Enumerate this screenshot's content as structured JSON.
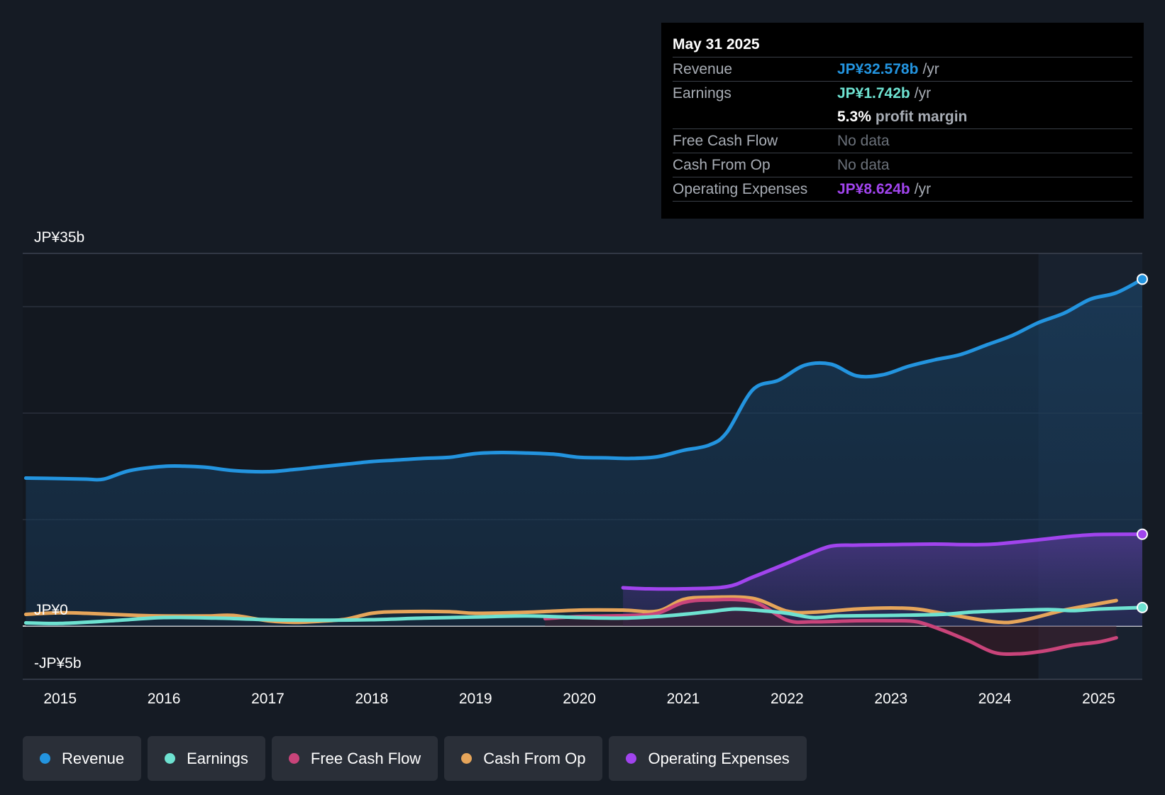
{
  "tooltip": {
    "date": "May 31 2025",
    "rows": {
      "revenue": {
        "label": "Revenue",
        "value": "JP¥32.578b",
        "unit": "/yr",
        "color": "#2394df"
      },
      "earnings": {
        "label": "Earnings",
        "value": "JP¥1.742b",
        "unit": "/yr",
        "color": "#6ee2d1"
      },
      "margin": {
        "value": "5.3%",
        "unit": "profit margin"
      },
      "fcf": {
        "label": "Free Cash Flow",
        "value": "No data"
      },
      "cfo": {
        "label": "Cash From Op",
        "value": "No data"
      },
      "opex": {
        "label": "Operating Expenses",
        "value": "JP¥8.624b",
        "unit": "/yr",
        "color": "#a144ee"
      }
    }
  },
  "legend": [
    {
      "label": "Revenue",
      "color": "#2394df"
    },
    {
      "label": "Earnings",
      "color": "#6ee2d1"
    },
    {
      "label": "Free Cash Flow",
      "color": "#c9447a"
    },
    {
      "label": "Cash From Op",
      "color": "#e6a55a"
    },
    {
      "label": "Operating Expenses",
      "color": "#a144ee"
    }
  ],
  "chart_data": {
    "type": "line",
    "ylim": [
      -5,
      35
    ],
    "xlim": [
      2014.64,
      2025.42
    ],
    "y_axis_labels": [
      {
        "value": 35,
        "label": "JP¥35b"
      },
      {
        "value": 0,
        "label": "JP¥0"
      },
      {
        "value": -5,
        "label": "-JP¥5b"
      }
    ],
    "x_ticks": [
      2015,
      2016,
      2017,
      2018,
      2019,
      2020,
      2021,
      2022,
      2023,
      2024,
      2025
    ],
    "x_tick_labels": [
      "2015",
      "2016",
      "2017",
      "2018",
      "2019",
      "2020",
      "2021",
      "2022",
      "2023",
      "2024",
      "2025"
    ],
    "series": [
      {
        "name": "Revenue",
        "color": "#2394df",
        "fill": true,
        "points": [
          [
            2014.67,
            13.9
          ],
          [
            2015.0,
            13.85
          ],
          [
            2015.25,
            13.8
          ],
          [
            2015.42,
            13.8
          ],
          [
            2015.67,
            14.6
          ],
          [
            2016.0,
            15.0
          ],
          [
            2016.25,
            15.0
          ],
          [
            2016.42,
            14.9
          ],
          [
            2016.67,
            14.6
          ],
          [
            2017.0,
            14.5
          ],
          [
            2017.25,
            14.7
          ],
          [
            2017.5,
            14.95
          ],
          [
            2017.75,
            15.2
          ],
          [
            2018.0,
            15.45
          ],
          [
            2018.25,
            15.6
          ],
          [
            2018.5,
            15.75
          ],
          [
            2018.75,
            15.85
          ],
          [
            2019.0,
            16.2
          ],
          [
            2019.25,
            16.3
          ],
          [
            2019.5,
            16.25
          ],
          [
            2019.75,
            16.15
          ],
          [
            2020.0,
            15.85
          ],
          [
            2020.25,
            15.8
          ],
          [
            2020.5,
            15.75
          ],
          [
            2020.75,
            15.9
          ],
          [
            2021.0,
            16.5
          ],
          [
            2021.25,
            17.0
          ],
          [
            2021.42,
            18.2
          ],
          [
            2021.67,
            22.2
          ],
          [
            2021.92,
            23.1
          ],
          [
            2022.17,
            24.5
          ],
          [
            2022.42,
            24.6
          ],
          [
            2022.67,
            23.5
          ],
          [
            2022.92,
            23.6
          ],
          [
            2023.17,
            24.4
          ],
          [
            2023.42,
            25.0
          ],
          [
            2023.67,
            25.5
          ],
          [
            2023.92,
            26.4
          ],
          [
            2024.17,
            27.3
          ],
          [
            2024.42,
            28.5
          ],
          [
            2024.67,
            29.4
          ],
          [
            2024.92,
            30.7
          ],
          [
            2025.17,
            31.3
          ],
          [
            2025.42,
            32.578
          ]
        ]
      },
      {
        "name": "Operating Expenses",
        "color": "#a144ee",
        "fill": true,
        "points": [
          [
            2020.42,
            3.6
          ],
          [
            2020.67,
            3.5
          ],
          [
            2021.0,
            3.5
          ],
          [
            2021.42,
            3.7
          ],
          [
            2021.67,
            4.6
          ],
          [
            2022.0,
            5.9
          ],
          [
            2022.17,
            6.6
          ],
          [
            2022.42,
            7.5
          ],
          [
            2022.67,
            7.6
          ],
          [
            2023.0,
            7.65
          ],
          [
            2023.42,
            7.7
          ],
          [
            2023.75,
            7.65
          ],
          [
            2024.0,
            7.7
          ],
          [
            2024.42,
            8.1
          ],
          [
            2024.75,
            8.45
          ],
          [
            2025.0,
            8.6
          ],
          [
            2025.42,
            8.624
          ]
        ]
      },
      {
        "name": "Cash From Op",
        "color": "#e6a55a",
        "fill": false,
        "points": [
          [
            2014.67,
            1.1
          ],
          [
            2015.0,
            1.25
          ],
          [
            2015.25,
            1.2
          ],
          [
            2015.5,
            1.1
          ],
          [
            2015.75,
            1.0
          ],
          [
            2016.0,
            0.95
          ],
          [
            2016.42,
            0.95
          ],
          [
            2016.67,
            1.0
          ],
          [
            2017.0,
            0.5
          ],
          [
            2017.25,
            0.35
          ],
          [
            2017.5,
            0.45
          ],
          [
            2017.75,
            0.65
          ],
          [
            2018.0,
            1.2
          ],
          [
            2018.25,
            1.35
          ],
          [
            2018.75,
            1.35
          ],
          [
            2019.0,
            1.2
          ],
          [
            2019.5,
            1.3
          ],
          [
            2020.0,
            1.5
          ],
          [
            2020.42,
            1.5
          ],
          [
            2020.75,
            1.4
          ],
          [
            2021.0,
            2.5
          ],
          [
            2021.25,
            2.7
          ],
          [
            2021.67,
            2.6
          ],
          [
            2022.0,
            1.4
          ],
          [
            2022.25,
            1.3
          ],
          [
            2022.67,
            1.6
          ],
          [
            2023.0,
            1.7
          ],
          [
            2023.25,
            1.6
          ],
          [
            2023.5,
            1.2
          ],
          [
            2024.0,
            0.4
          ],
          [
            2024.25,
            0.5
          ],
          [
            2024.67,
            1.5
          ],
          [
            2025.0,
            2.1
          ],
          [
            2025.17,
            2.4
          ]
        ]
      },
      {
        "name": "Free Cash Flow",
        "color": "#c9447a",
        "fill": false,
        "points": [
          [
            2019.67,
            0.7
          ],
          [
            2020.0,
            0.9
          ],
          [
            2020.5,
            1.0
          ],
          [
            2020.75,
            1.2
          ],
          [
            2021.0,
            2.2
          ],
          [
            2021.25,
            2.45
          ],
          [
            2021.67,
            2.3
          ],
          [
            2022.0,
            0.55
          ],
          [
            2022.25,
            0.4
          ],
          [
            2022.67,
            0.5
          ],
          [
            2023.0,
            0.5
          ],
          [
            2023.25,
            0.4
          ],
          [
            2023.5,
            -0.4
          ],
          [
            2023.75,
            -1.4
          ],
          [
            2024.0,
            -2.5
          ],
          [
            2024.25,
            -2.6
          ],
          [
            2024.5,
            -2.3
          ],
          [
            2024.75,
            -1.8
          ],
          [
            2025.0,
            -1.5
          ],
          [
            2025.17,
            -1.1
          ]
        ]
      },
      {
        "name": "Earnings",
        "color": "#6ee2d1",
        "fill": false,
        "points": [
          [
            2014.67,
            0.3
          ],
          [
            2015.0,
            0.25
          ],
          [
            2015.5,
            0.5
          ],
          [
            2016.0,
            0.8
          ],
          [
            2016.5,
            0.75
          ],
          [
            2017.0,
            0.6
          ],
          [
            2017.5,
            0.55
          ],
          [
            2018.0,
            0.6
          ],
          [
            2018.5,
            0.75
          ],
          [
            2019.0,
            0.85
          ],
          [
            2019.5,
            0.95
          ],
          [
            2020.0,
            0.8
          ],
          [
            2020.42,
            0.75
          ],
          [
            2020.75,
            0.9
          ],
          [
            2021.0,
            1.1
          ],
          [
            2021.25,
            1.35
          ],
          [
            2021.5,
            1.6
          ],
          [
            2021.75,
            1.45
          ],
          [
            2022.0,
            1.2
          ],
          [
            2022.25,
            0.8
          ],
          [
            2022.5,
            0.95
          ],
          [
            2023.0,
            1.0
          ],
          [
            2023.5,
            1.1
          ],
          [
            2023.75,
            1.3
          ],
          [
            2024.0,
            1.4
          ],
          [
            2024.5,
            1.55
          ],
          [
            2024.75,
            1.45
          ],
          [
            2025.0,
            1.6
          ],
          [
            2025.42,
            1.742
          ]
        ]
      }
    ],
    "highlight_from": 2024.42
  }
}
